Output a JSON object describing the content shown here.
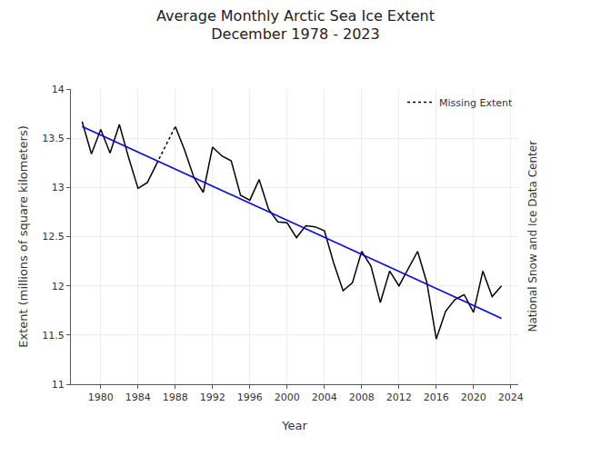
{
  "chart_data": {
    "type": "line",
    "title": "Average Monthly Arctic Sea Ice Extent\nDecember 1978 - 2023",
    "xlabel": "Year",
    "ylabel": "Extent (millions of square kilometers)",
    "annotations": [
      "National Snow and Ice Data Center"
    ],
    "x": [
      1978,
      1979,
      1980,
      1981,
      1982,
      1983,
      1984,
      1985,
      1986,
      1987,
      1988,
      1989,
      1990,
      1991,
      1992,
      1993,
      1994,
      1995,
      1996,
      1997,
      1998,
      1999,
      2000,
      2001,
      2002,
      2003,
      2004,
      2005,
      2006,
      2007,
      2008,
      2009,
      2010,
      2011,
      2012,
      2013,
      2014,
      2015,
      2016,
      2017,
      2018,
      2019,
      2020,
      2021,
      2022,
      2023
    ],
    "series": [
      {
        "color": "#000000",
        "line_style": "solid",
        "values": [
          13.67,
          13.34,
          13.59,
          13.35,
          13.64,
          13.3,
          12.99,
          13.05,
          13.24,
          null,
          13.62,
          13.38,
          13.1,
          12.95,
          13.41,
          13.32,
          13.27,
          12.92,
          12.87,
          13.08,
          12.78,
          12.65,
          12.64,
          12.49,
          12.61,
          12.6,
          12.56,
          12.23,
          11.95,
          12.03,
          12.35,
          12.2,
          11.83,
          12.15,
          12.0,
          12.18,
          12.35,
          12.03,
          11.46,
          11.74,
          11.86,
          11.91,
          11.73,
          12.15,
          11.89,
          12.0
        ]
      },
      {
        "name": "Missing Extent",
        "color": "#000000",
        "line_style": "dotted",
        "x": [
          1986,
          1988
        ],
        "values": [
          13.24,
          13.62
        ]
      },
      {
        "color": "#0000ff",
        "line_style": "solid",
        "x": [
          1978,
          2023
        ],
        "values": [
          13.62,
          11.67
        ]
      }
    ],
    "xlim": [
      1976.8,
      2024.8
    ],
    "xticks": [
      1980,
      1984,
      1988,
      1992,
      1996,
      2000,
      2004,
      2008,
      2012,
      2016,
      2020,
      2024
    ],
    "ylim": [
      11,
      14
    ],
    "yticks": [
      11,
      11.5,
      12,
      12.5,
      13,
      13.5,
      14
    ],
    "grid": true,
    "legend": "upper right"
  }
}
